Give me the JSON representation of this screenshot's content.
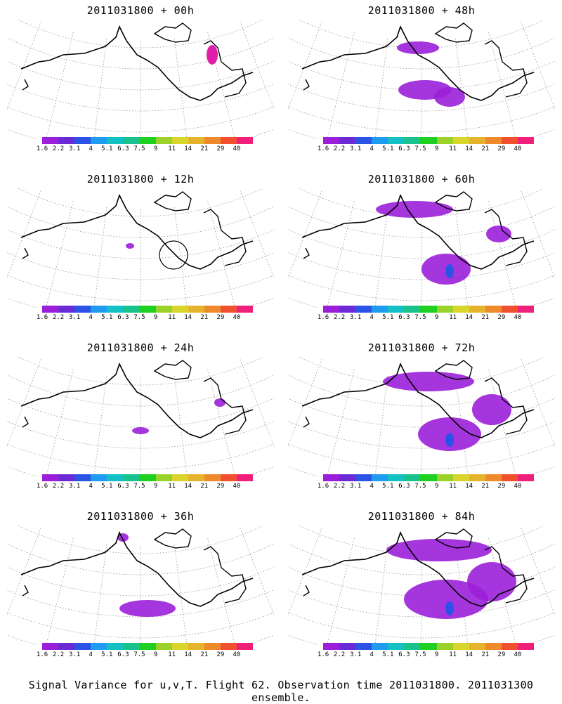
{
  "panels": [
    {
      "title": "2011031800 + 00h",
      "level": 0
    },
    {
      "title": "2011031800 + 48h",
      "level": 4
    },
    {
      "title": "2011031800 + 12h",
      "level": 1
    },
    {
      "title": "2011031800 + 60h",
      "level": 5
    },
    {
      "title": "2011031800 + 24h",
      "level": 2
    },
    {
      "title": "2011031800 + 72h",
      "level": 6
    },
    {
      "title": "2011031800 + 36h",
      "level": 3
    },
    {
      "title": "2011031800 + 84h",
      "level": 7
    }
  ],
  "colorbar": {
    "colors": [
      "#9b1fd8",
      "#6b2ad6",
      "#2b54e6",
      "#1f9cf0",
      "#13c0c4",
      "#19c28c",
      "#1fcf22",
      "#9bd22a",
      "#d9d52c",
      "#e6b42c",
      "#ee8a2c",
      "#f0502e",
      "#f01f7a"
    ],
    "labels": [
      "1.6",
      "2.2",
      "3.1",
      "4",
      "5.1",
      "6.3",
      "7.5",
      "9",
      "11",
      "14",
      "21",
      "29",
      "40"
    ]
  },
  "caption": "Signal Variance for u,v,T. Flight 62. Observation time 2011031800. 2011031300 ensemble."
}
